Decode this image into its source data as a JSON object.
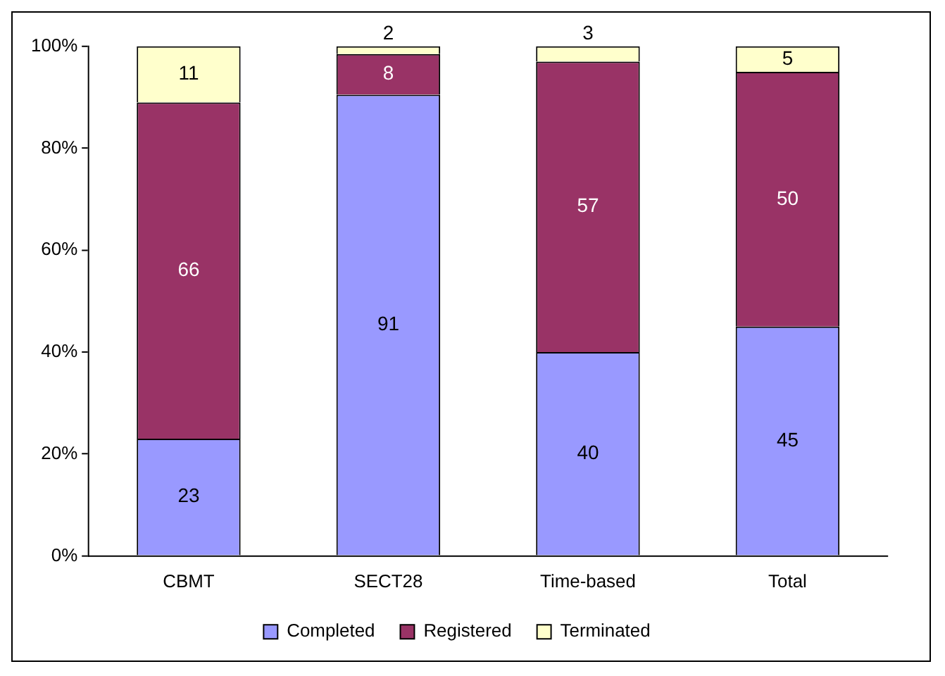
{
  "chart_data": {
    "type": "bar",
    "stacked": true,
    "categories": [
      "CBMT",
      "SECT28",
      "Time-based",
      "Total"
    ],
    "series": [
      {
        "name": "Completed",
        "color": "#9999ff",
        "values": [
          23,
          90.5,
          40,
          45
        ],
        "value_labels": [
          "23",
          "91",
          "40",
          "45"
        ]
      },
      {
        "name": "Registered",
        "color": "#993366",
        "values": [
          66,
          8,
          57,
          50
        ],
        "value_labels": [
          "66",
          "8",
          "57",
          "50"
        ]
      },
      {
        "name": "Terminated",
        "color": "#ffffcc",
        "values": [
          11,
          1.5,
          3,
          5
        ],
        "value_labels": [
          "11",
          "2",
          "3",
          "5"
        ]
      }
    ],
    "ylim": [
      0,
      100
    ],
    "yticks": [
      {
        "value": 0,
        "label": "0%"
      },
      {
        "value": 20,
        "label": "20%"
      },
      {
        "value": 40,
        "label": "40%"
      },
      {
        "value": 60,
        "label": "60%"
      },
      {
        "value": 80,
        "label": "80%"
      },
      {
        "value": 100,
        "label": "100%"
      }
    ],
    "grid": false,
    "legend": "bottom"
  }
}
